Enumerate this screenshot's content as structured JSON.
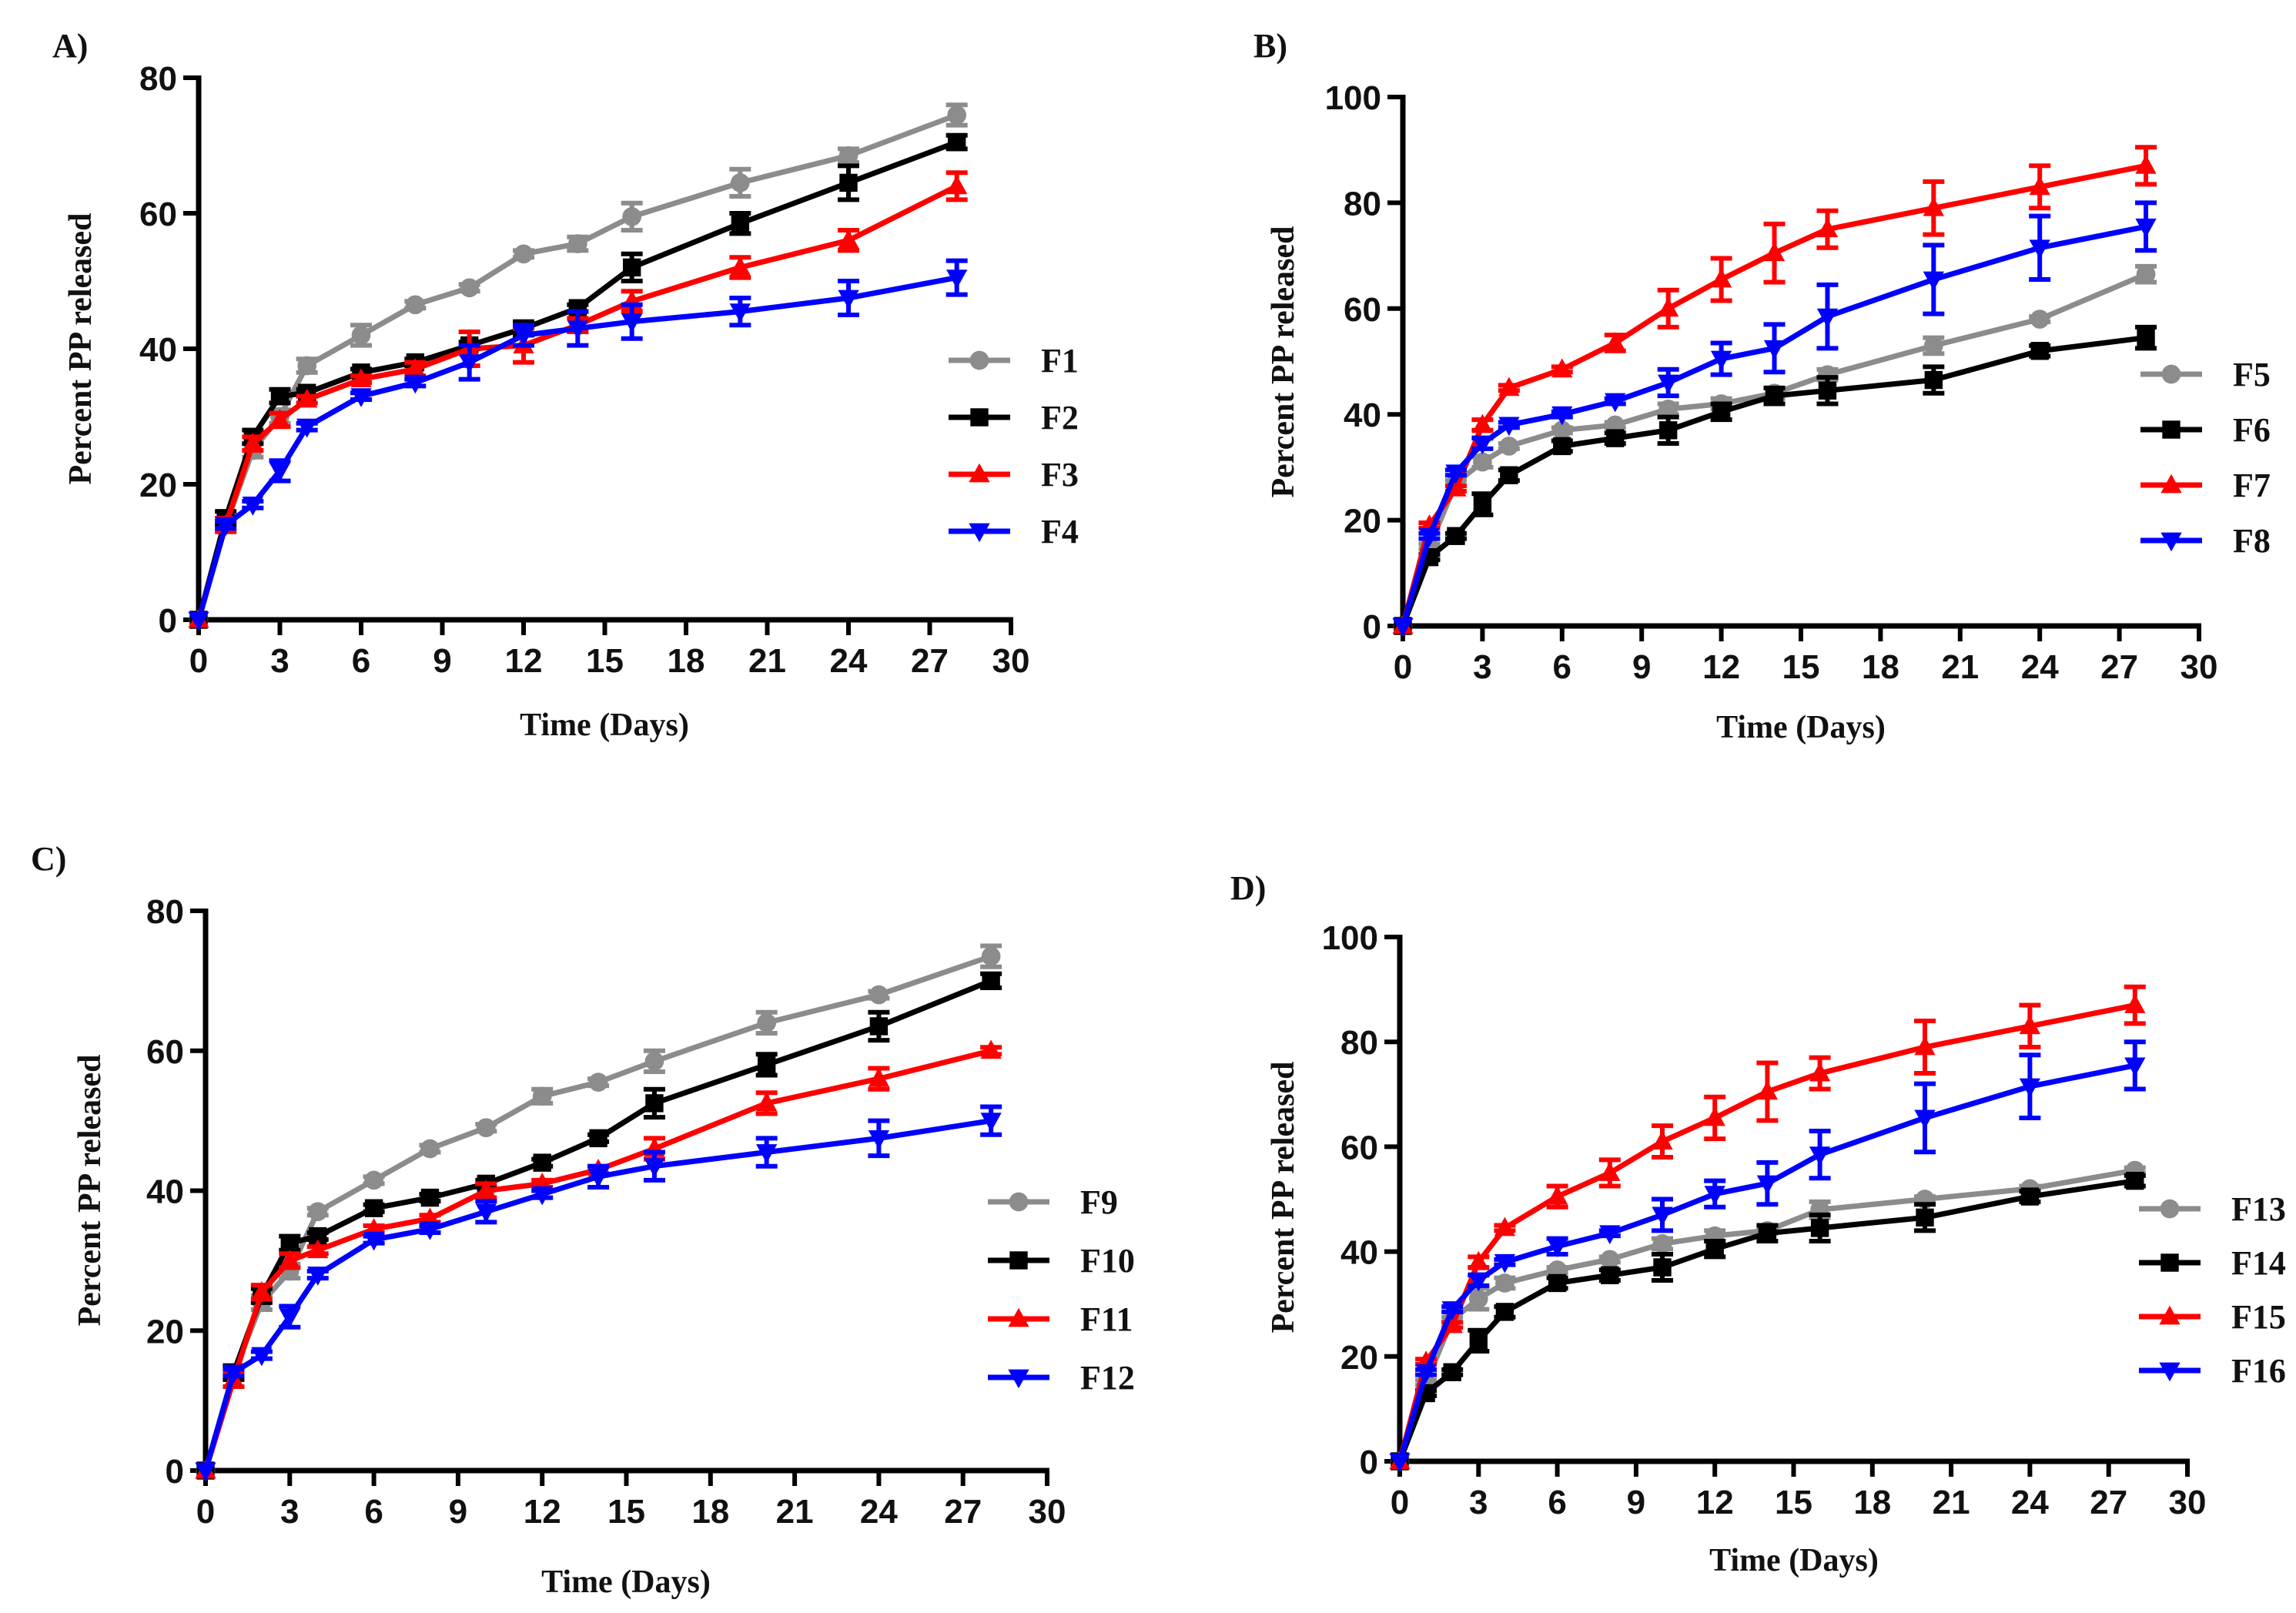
{
  "chart_data": [
    {
      "type": "line",
      "panel_label": "A)",
      "xlabel": "Time (Days)",
      "ylabel": "Percent PP released",
      "xlim": [
        0,
        30
      ],
      "ylim": [
        0,
        80
      ],
      "xticks": [
        0,
        3,
        6,
        9,
        12,
        15,
        18,
        21,
        24,
        27,
        30
      ],
      "yticks": [
        0,
        20,
        40,
        60,
        80
      ],
      "legend_position": "right",
      "x": [
        0,
        1,
        2,
        3,
        4,
        6,
        8,
        10,
        12,
        14,
        16,
        20,
        24,
        28
      ],
      "series": [
        {
          "name": "F1",
          "color": "#8c8c8c",
          "marker": "circle",
          "values": [
            0,
            14,
            25,
            30,
            37.5,
            42,
            46.5,
            49,
            54,
            55.5,
            59.5,
            64.5,
            68.5,
            74.5
          ],
          "error": [
            0,
            1,
            1,
            1,
            1,
            1.5,
            0.5,
            0.5,
            0.5,
            1,
            2,
            2,
            1,
            1.5
          ]
        },
        {
          "name": "F2",
          "color": "#000000",
          "marker": "square",
          "values": [
            0,
            15,
            27,
            33,
            33.5,
            36.5,
            38,
            40.5,
            43,
            46,
            52,
            58.5,
            64.5,
            70.5
          ],
          "error": [
            0,
            1,
            1,
            1,
            0.5,
            0.5,
            0.5,
            0.5,
            1,
            0.5,
            2,
            1.5,
            2.5,
            1
          ]
        },
        {
          "name": "F3",
          "color": "#ff0000",
          "marker": "triangle-up",
          "values": [
            0,
            14,
            26,
            29.5,
            32.5,
            35.5,
            37,
            40,
            40.5,
            43.5,
            47,
            52,
            56,
            64
          ],
          "error": [
            0,
            1,
            1,
            1,
            0.5,
            0.5,
            1,
            2.5,
            2.5,
            1,
            1.5,
            1.5,
            1.5,
            2
          ]
        },
        {
          "name": "F4",
          "color": "#0000ff",
          "marker": "triangle-down",
          "values": [
            0,
            14,
            17,
            22,
            28.5,
            33,
            35,
            38,
            42,
            43,
            44,
            45.5,
            47.5,
            50.5
          ],
          "error": [
            0,
            0.5,
            0.5,
            1.5,
            0.5,
            0.5,
            0.5,
            2.5,
            1.5,
            2.5,
            2.5,
            2,
            2.5,
            2.5
          ]
        }
      ]
    },
    {
      "type": "line",
      "panel_label": "B)",
      "xlabel": "Time (Days)",
      "ylabel": "Percent PP released",
      "xlim": [
        0,
        30
      ],
      "ylim": [
        0,
        100
      ],
      "xticks": [
        0,
        3,
        6,
        9,
        12,
        15,
        18,
        21,
        24,
        27,
        30
      ],
      "yticks": [
        0,
        20,
        40,
        60,
        80,
        100
      ],
      "legend_position": "right",
      "x": [
        0,
        1,
        2,
        3,
        4,
        6,
        8,
        10,
        12,
        14,
        16,
        20,
        24,
        28
      ],
      "series": [
        {
          "name": "F5",
          "color": "#8c8c8c",
          "marker": "circle",
          "values": [
            0,
            15,
            27,
            31,
            34,
            37,
            38,
            41,
            42,
            44,
            47.5,
            53,
            58,
            66.5
          ],
          "error": [
            0,
            0.5,
            0.5,
            1,
            0.5,
            0.5,
            0.5,
            1,
            1,
            1,
            1,
            1.5,
            0.5,
            1.5
          ]
        },
        {
          "name": "F6",
          "color": "#000000",
          "marker": "square",
          "values": [
            0,
            13,
            17,
            23,
            28.5,
            34,
            35.5,
            37,
            40.5,
            43.5,
            44.5,
            46.5,
            52,
            54.5
          ],
          "error": [
            0,
            0.5,
            0.5,
            2,
            1,
            1,
            1,
            2.5,
            1.5,
            1.5,
            2.5,
            2.5,
            1,
            2
          ]
        },
        {
          "name": "F7",
          "color": "#ff0000",
          "marker": "triangle-up",
          "values": [
            0,
            19,
            26,
            38,
            45,
            48.5,
            53.5,
            60,
            65.5,
            70.5,
            75,
            79,
            83,
            87
          ],
          "error": [
            0,
            0.5,
            0.5,
            1,
            0.5,
            0.5,
            1.5,
            3.5,
            4,
            5.5,
            3.5,
            5,
            4,
            3.5
          ]
        },
        {
          "name": "F8",
          "color": "#0000ff",
          "marker": "triangle-down",
          "values": [
            0,
            17,
            29,
            34.5,
            38,
            40,
            42.5,
            46,
            50.5,
            52.5,
            58.5,
            65.5,
            71.5,
            75.5
          ],
          "error": [
            0,
            0.5,
            0.5,
            1,
            0.5,
            0.5,
            0.5,
            2.5,
            3,
            4.5,
            6,
            6.5,
            6,
            4.5
          ]
        }
      ]
    },
    {
      "type": "line",
      "panel_label": "C)",
      "xlabel": "Time (Days)",
      "ylabel": "Percent PP released",
      "xlim": [
        0,
        30
      ],
      "ylim": [
        0,
        80
      ],
      "xticks": [
        0,
        3,
        6,
        9,
        12,
        15,
        18,
        21,
        24,
        27,
        30
      ],
      "yticks": [
        0,
        20,
        40,
        60,
        80
      ],
      "legend_position": "right",
      "x": [
        0,
        1,
        2,
        3,
        4,
        6,
        8,
        10,
        12,
        14,
        16,
        20,
        24,
        28
      ],
      "series": [
        {
          "name": "F9",
          "color": "#8c8c8c",
          "marker": "circle",
          "values": [
            0,
            14,
            24,
            28.5,
            37,
            41.5,
            46,
            49,
            53.5,
            55.5,
            58.5,
            64,
            68,
            73.5
          ],
          "error": [
            0,
            1,
            1,
            1,
            0.5,
            0.5,
            0.5,
            0.5,
            1,
            0.5,
            1.5,
            1.5,
            0.5,
            1.5
          ]
        },
        {
          "name": "F10",
          "color": "#000000",
          "marker": "square",
          "values": [
            0,
            14,
            25,
            32.5,
            33.5,
            37.5,
            39,
            41,
            44,
            47.5,
            52.5,
            58,
            63.5,
            70
          ],
          "error": [
            0,
            1,
            1,
            1,
            0.5,
            0.5,
            0.5,
            0.5,
            0.5,
            0.5,
            2,
            1.5,
            2,
            1
          ]
        },
        {
          "name": "F11",
          "color": "#ff0000",
          "marker": "triangle-up",
          "values": [
            0,
            13,
            25.5,
            30,
            31.5,
            34.5,
            36,
            40,
            41,
            43,
            46,
            52.5,
            56,
            60
          ],
          "error": [
            0,
            1,
            1,
            1,
            0.5,
            0.5,
            0.5,
            1,
            0.5,
            0.5,
            1.5,
            1.5,
            1.5,
            0.5
          ]
        },
        {
          "name": "F12",
          "color": "#0000ff",
          "marker": "triangle-down",
          "values": [
            0,
            14,
            16.5,
            22,
            28,
            33,
            34.5,
            37,
            39.5,
            42,
            43.5,
            45.5,
            47.5,
            50
          ],
          "error": [
            0,
            0.5,
            0.5,
            1.5,
            0.5,
            0.5,
            0.5,
            1.5,
            0.5,
            1.5,
            2,
            2,
            2.5,
            2
          ]
        }
      ]
    },
    {
      "type": "line",
      "panel_label": "D)",
      "xlabel": "Time (Days)",
      "ylabel": "Percent PP released",
      "xlim": [
        0,
        30
      ],
      "ylim": [
        0,
        100
      ],
      "xticks": [
        0,
        3,
        6,
        9,
        12,
        15,
        18,
        21,
        24,
        27,
        30
      ],
      "yticks": [
        0,
        20,
        40,
        60,
        80,
        100
      ],
      "legend_position": "right",
      "x": [
        0,
        1,
        2,
        3,
        4,
        6,
        8,
        10,
        12,
        14,
        16,
        20,
        24,
        28
      ],
      "series": [
        {
          "name": "F13",
          "color": "#8c8c8c",
          "marker": "circle",
          "values": [
            0,
            15,
            27,
            31,
            34,
            36.5,
            38.5,
            41.5,
            43,
            44,
            48,
            50,
            52,
            55.5
          ],
          "error": [
            0,
            0.5,
            0.5,
            2,
            1,
            0.5,
            0.5,
            1,
            1,
            0.5,
            1.5,
            0.5,
            0.5,
            0.5
          ]
        },
        {
          "name": "F14",
          "color": "#000000",
          "marker": "square",
          "values": [
            0,
            13,
            17,
            23,
            28.5,
            34,
            35.5,
            37,
            40.5,
            43.5,
            44.5,
            46.5,
            50.5,
            53.5
          ],
          "error": [
            0,
            0.5,
            0.5,
            2,
            1,
            1,
            1,
            2.5,
            1.5,
            1.5,
            2.5,
            2.5,
            1,
            1
          ]
        },
        {
          "name": "F15",
          "color": "#ff0000",
          "marker": "triangle-up",
          "values": [
            0,
            19,
            26,
            38,
            44.5,
            50.5,
            55,
            61,
            65.5,
            70.5,
            74,
            79,
            83,
            87
          ],
          "error": [
            0,
            0.5,
            0.5,
            1,
            0.5,
            2,
            2.5,
            3,
            4,
            5.5,
            3,
            5,
            4,
            3.5
          ]
        },
        {
          "name": "F16",
          "color": "#0000ff",
          "marker": "triangle-down",
          "values": [
            0,
            17,
            29,
            34.5,
            38,
            41,
            43.5,
            47,
            51,
            53,
            58.5,
            65.5,
            71.5,
            75.5
          ],
          "error": [
            0,
            0.5,
            0.5,
            1,
            0.5,
            1.5,
            0.5,
            3,
            2.5,
            4,
            4.5,
            6.5,
            6,
            4.5
          ]
        }
      ]
    }
  ]
}
